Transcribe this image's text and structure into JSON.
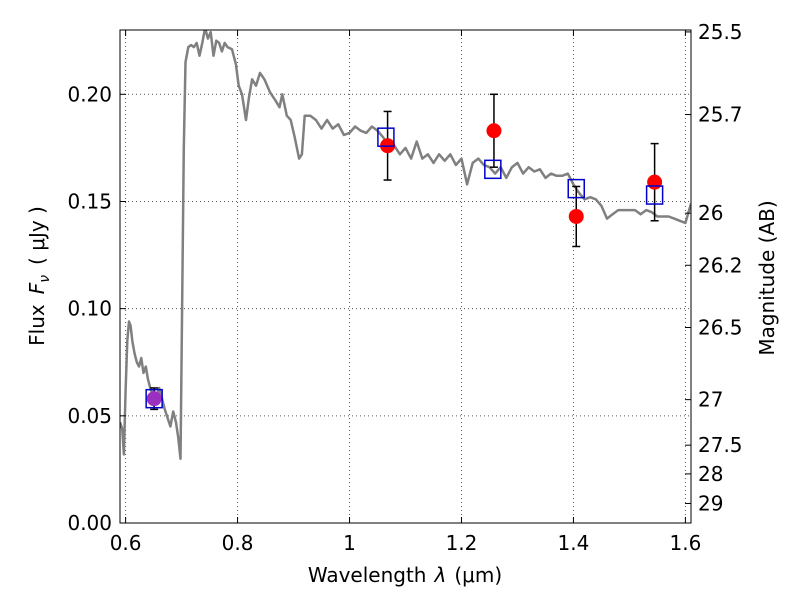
{
  "chart_data": {
    "type": "scatter",
    "xlabel_text": "Wavelength",
    "xlabel_symbol": "λ",
    "xlabel_unit": "(μm)",
    "ylabel_text": "Flux",
    "ylabel_symbol_main": "F",
    "ylabel_symbol_sub": "ν",
    "ylabel_unit": "( μJy )",
    "y2label": "Magnitude (AB)",
    "xlim": [
      0.59,
      1.61
    ],
    "ylim": [
      0.0,
      0.23
    ],
    "grid": true,
    "x_ticks": [
      0.6,
      0.8,
      1.0,
      1.2,
      1.4,
      1.6
    ],
    "x_tick_labels": [
      "0.6",
      "0.8",
      "1",
      "1.2",
      "1.4",
      "1.6"
    ],
    "y_ticks": [
      0.0,
      0.05,
      0.1,
      0.15,
      0.2
    ],
    "y_tick_labels": [
      "0.00",
      "0.05",
      "0.10",
      "0.15",
      "0.20"
    ],
    "y2_ticks": [
      25.5,
      25.7,
      26,
      26.2,
      26.5,
      27,
      27.5,
      28,
      29
    ],
    "y2_tick_labels": [
      "25.5",
      "25.7",
      "26",
      "26.2",
      "26.5",
      "27",
      "27.5",
      "28",
      "29"
    ],
    "colors": {
      "model": "#808080",
      "observed": "#ff0000",
      "model_photometry": "#0000cc",
      "blend": "#9b30c0",
      "errorbar": "#000000",
      "grid": "#555555"
    },
    "series": [
      {
        "type": "line",
        "points": [
          [
            0.59,
            0.047
          ],
          [
            0.594,
            0.044
          ],
          [
            0.597,
            0.032
          ],
          [
            0.6,
            0.062
          ],
          [
            0.603,
            0.085
          ],
          [
            0.606,
            0.094
          ],
          [
            0.609,
            0.092
          ],
          [
            0.612,
            0.085
          ],
          [
            0.616,
            0.079
          ],
          [
            0.62,
            0.075
          ],
          [
            0.624,
            0.073
          ],
          [
            0.628,
            0.077
          ],
          [
            0.632,
            0.07
          ],
          [
            0.636,
            0.073
          ],
          [
            0.64,
            0.067
          ],
          [
            0.645,
            0.062
          ],
          [
            0.65,
            0.06
          ],
          [
            0.655,
            0.058
          ],
          [
            0.66,
            0.063
          ],
          [
            0.665,
            0.058
          ],
          [
            0.67,
            0.053
          ],
          [
            0.675,
            0.049
          ],
          [
            0.68,
            0.045
          ],
          [
            0.685,
            0.052
          ],
          [
            0.69,
            0.047
          ],
          [
            0.694,
            0.04
          ],
          [
            0.698,
            0.03
          ],
          [
            0.701,
            0.1
          ],
          [
            0.704,
            0.175
          ],
          [
            0.707,
            0.215
          ],
          [
            0.712,
            0.222
          ],
          [
            0.717,
            0.223
          ],
          [
            0.722,
            0.222
          ],
          [
            0.727,
            0.224
          ],
          [
            0.732,
            0.218
          ],
          [
            0.737,
            0.224
          ],
          [
            0.742,
            0.231
          ],
          [
            0.747,
            0.226
          ],
          [
            0.752,
            0.229
          ],
          [
            0.757,
            0.218
          ],
          [
            0.762,
            0.225
          ],
          [
            0.767,
            0.224
          ],
          [
            0.772,
            0.22
          ],
          [
            0.777,
            0.224
          ],
          [
            0.782,
            0.222
          ],
          [
            0.79,
            0.221
          ],
          [
            0.797,
            0.214
          ],
          [
            0.802,
            0.204
          ],
          [
            0.808,
            0.2
          ],
          [
            0.815,
            0.188
          ],
          [
            0.82,
            0.198
          ],
          [
            0.826,
            0.207
          ],
          [
            0.833,
            0.204
          ],
          [
            0.84,
            0.21
          ],
          [
            0.848,
            0.207
          ],
          [
            0.858,
            0.201
          ],
          [
            0.868,
            0.197
          ],
          [
            0.875,
            0.194
          ],
          [
            0.88,
            0.2
          ],
          [
            0.888,
            0.19
          ],
          [
            0.895,
            0.188
          ],
          [
            0.902,
            0.18
          ],
          [
            0.91,
            0.17
          ],
          [
            0.915,
            0.172
          ],
          [
            0.92,
            0.19
          ],
          [
            0.93,
            0.19
          ],
          [
            0.94,
            0.188
          ],
          [
            0.95,
            0.184
          ],
          [
            0.96,
            0.188
          ],
          [
            0.97,
            0.184
          ],
          [
            0.98,
            0.186
          ],
          [
            0.99,
            0.181
          ],
          [
            1.0,
            0.182
          ],
          [
            1.01,
            0.185
          ],
          [
            1.02,
            0.183
          ],
          [
            1.03,
            0.182
          ],
          [
            1.04,
            0.185
          ],
          [
            1.05,
            0.183
          ],
          [
            1.06,
            0.18
          ],
          [
            1.07,
            0.176
          ],
          [
            1.08,
            0.176
          ],
          [
            1.09,
            0.172
          ],
          [
            1.1,
            0.175
          ],
          [
            1.11,
            0.17
          ],
          [
            1.12,
            0.178
          ],
          [
            1.13,
            0.17
          ],
          [
            1.14,
            0.172
          ],
          [
            1.15,
            0.168
          ],
          [
            1.16,
            0.172
          ],
          [
            1.17,
            0.169
          ],
          [
            1.18,
            0.172
          ],
          [
            1.19,
            0.167
          ],
          [
            1.2,
            0.17
          ],
          [
            1.21,
            0.158
          ],
          [
            1.22,
            0.168
          ],
          [
            1.23,
            0.17
          ],
          [
            1.24,
            0.167
          ],
          [
            1.25,
            0.166
          ],
          [
            1.26,
            0.163
          ],
          [
            1.27,
            0.166
          ],
          [
            1.28,
            0.161
          ],
          [
            1.29,
            0.166
          ],
          [
            1.3,
            0.168
          ],
          [
            1.31,
            0.163
          ],
          [
            1.32,
            0.166
          ],
          [
            1.33,
            0.164
          ],
          [
            1.34,
            0.165
          ],
          [
            1.35,
            0.161
          ],
          [
            1.36,
            0.163
          ],
          [
            1.37,
            0.162
          ],
          [
            1.38,
            0.162
          ],
          [
            1.39,
            0.163
          ],
          [
            1.4,
            0.158
          ],
          [
            1.41,
            0.154
          ],
          [
            1.42,
            0.151
          ],
          [
            1.43,
            0.152
          ],
          [
            1.44,
            0.151
          ],
          [
            1.45,
            0.148
          ],
          [
            1.46,
            0.142
          ],
          [
            1.47,
            0.144
          ],
          [
            1.48,
            0.146
          ],
          [
            1.49,
            0.146
          ],
          [
            1.5,
            0.146
          ],
          [
            1.51,
            0.146
          ],
          [
            1.52,
            0.144
          ],
          [
            1.53,
            0.146
          ],
          [
            1.54,
            0.145
          ],
          [
            1.55,
            0.143
          ],
          [
            1.56,
            0.143
          ],
          [
            1.57,
            0.143
          ],
          [
            1.58,
            0.142
          ],
          [
            1.59,
            0.141
          ],
          [
            1.6,
            0.14
          ],
          [
            1.61,
            0.149
          ]
        ]
      },
      {
        "type": "scatter",
        "marker": "circle",
        "x": [
          0.651,
          1.068,
          1.258,
          1.405,
          1.545
        ],
        "y": [
          0.058,
          0.176,
          0.183,
          0.143,
          0.159
        ],
        "yerr": [
          0.005,
          0.016,
          0.017,
          0.014,
          0.018
        ]
      },
      {
        "type": "scatter",
        "marker": "open-square",
        "x": [
          0.651,
          1.065,
          1.256,
          1.405,
          1.545
        ],
        "y": [
          0.058,
          0.18,
          0.165,
          0.156,
          0.153
        ]
      }
    ]
  }
}
